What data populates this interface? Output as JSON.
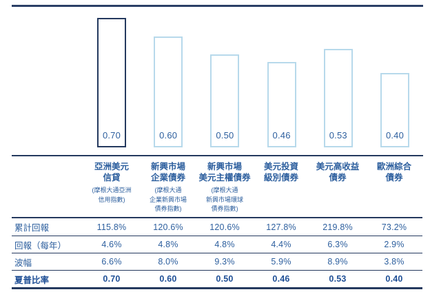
{
  "chart_data": {
    "type": "bar",
    "title": "",
    "series_name": "夏普比率",
    "categories": [
      "亞洲美元信貸 (摩根大通亞洲信用指數)",
      "新興市場企業債券 (摩根大通企業新興市場債券指數)",
      "新興市場美元主權債券 (摩根大通新興市場環球債券指數)",
      "美元投資級別債券",
      "美元高收益債券",
      "歐洲綜合債券"
    ],
    "values": [
      0.7,
      0.6,
      0.5,
      0.46,
      0.53,
      0.4
    ],
    "value_labels": [
      "0.70",
      "0.60",
      "0.50",
      "0.46",
      "0.53",
      "0.40"
    ],
    "highlight_index": 0,
    "ylim": [
      0,
      0.79
    ],
    "grid": false,
    "legend": "none",
    "colors": {
      "highlight_bar_border": "#24395e",
      "bar_border": "#b7d9eb",
      "bar_fill": "#ffffff",
      "value_text": "#2d5f9e",
      "axis_line": "#24395e"
    }
  },
  "columns": [
    {
      "title_lines": [
        "亞洲美元",
        "信貸"
      ],
      "subtitle_lines": [
        "(摩根大通亞洲",
        "信用指數)"
      ]
    },
    {
      "title_lines": [
        "新興市場",
        "企業債券"
      ],
      "subtitle_lines": [
        "(摩根大通",
        "企業新興市場",
        "債券指數)"
      ]
    },
    {
      "title_lines": [
        "新興市場",
        "美元主權債券"
      ],
      "subtitle_lines": [
        "(摩根大通",
        "新興市場環球",
        "債券指數)"
      ]
    },
    {
      "title_lines": [
        "美元投資",
        "級別債券"
      ],
      "subtitle_lines": []
    },
    {
      "title_lines": [
        "美元高收益",
        "債券"
      ],
      "subtitle_lines": []
    },
    {
      "title_lines": [
        "歐洲綜合",
        "債券"
      ],
      "subtitle_lines": []
    }
  ],
  "table": {
    "rows": [
      {
        "label": "累計回報",
        "values": [
          "115.8%",
          "120.6%",
          "120.6%",
          "127.8%",
          "219.8%",
          "73.2%"
        ],
        "bold": false
      },
      {
        "label": "回報（每年）",
        "values": [
          "4.6%",
          "4.8%",
          "4.8%",
          "4.4%",
          "6.3%",
          "2.9%"
        ],
        "bold": false
      },
      {
        "label": "波幅",
        "values": [
          "6.6%",
          "8.0%",
          "9.3%",
          "5.9%",
          "8.9%",
          "3.8%"
        ],
        "bold": false
      },
      {
        "label": "夏普比率",
        "values": [
          "0.70",
          "0.60",
          "0.50",
          "0.46",
          "0.53",
          "0.40"
        ],
        "bold": true
      }
    ]
  },
  "colors": {
    "rule": "#2b3f66",
    "text_blue": "#2d5f9e",
    "bold_blue": "#1f4f96"
  }
}
